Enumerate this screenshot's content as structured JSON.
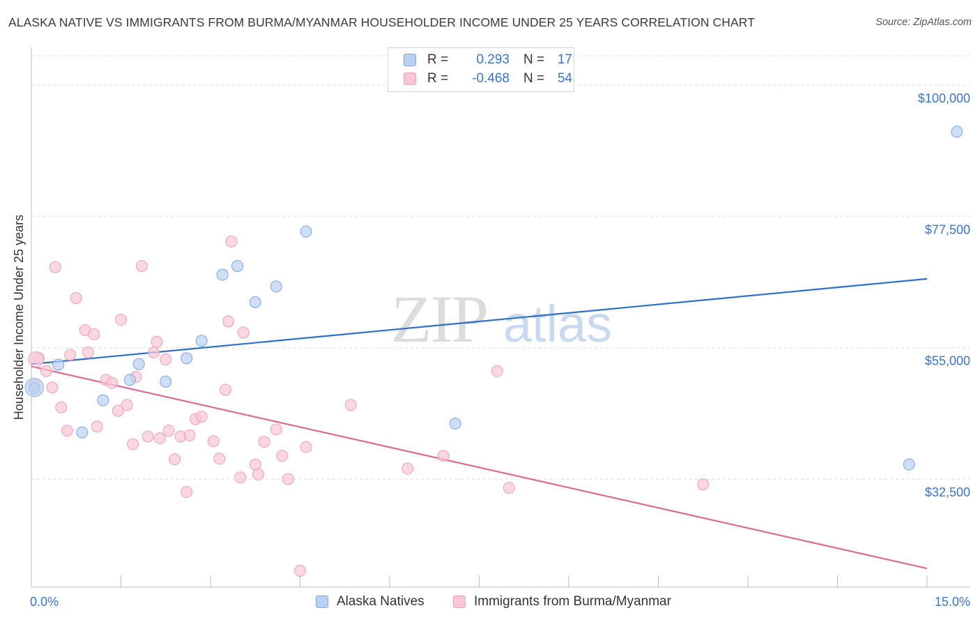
{
  "title": "ALASKA NATIVE VS IMMIGRANTS FROM BURMA/MYANMAR HOUSEHOLDER INCOME UNDER 25 YEARS CORRELATION CHART",
  "source": "Source: ZipAtlas.com",
  "watermark": {
    "zip": "ZIP",
    "atlas": "atlas"
  },
  "colors": {
    "blue_fill": "#b8d0f2",
    "blue_stroke": "#7fa6de",
    "blue_line": "#2f6fcc",
    "pink_fill": "#f8c6d4",
    "pink_stroke": "#eea0b6",
    "pink_line": "#e06891",
    "tick_label": "#3b74cc",
    "grid": "#dddddd"
  },
  "legend": {
    "r_label": "R =",
    "n_label": "N =",
    "rows": [
      {
        "r": "0.293",
        "n": "17",
        "color": "#b8d0f2",
        "stroke": "#7fa6de"
      },
      {
        "r": "-0.468",
        "n": "54",
        "color": "#f8c6d4",
        "stroke": "#eea0b6"
      }
    ]
  },
  "bottom_legend": {
    "series1": "Alaska Natives",
    "series2": "Immigrants from Burma/Myanmar"
  },
  "chart_data": {
    "type": "scatter",
    "ylabel": "Householder Income Under 25 years",
    "xlim": [
      0,
      15
    ],
    "ylim": [
      14000,
      105000
    ],
    "x_tick_labels": [
      {
        "value": 0,
        "label": "0.0%"
      },
      {
        "value": 15,
        "label": "15.0%"
      }
    ],
    "y_ticks": [
      {
        "value": 100000,
        "label": "$100,000"
      },
      {
        "value": 77500,
        "label": "$77,500"
      },
      {
        "value": 55000,
        "label": "$55,000"
      },
      {
        "value": 32500,
        "label": "$32,500"
      }
    ],
    "grid": true,
    "series": [
      {
        "name": "Alaska Natives",
        "color": "#b8d0f2",
        "trend": {
          "x": [
            0,
            15
          ],
          "y": [
            52200,
            66800
          ]
        },
        "points": [
          [
            0.05,
            48000
          ],
          [
            0.45,
            52100
          ],
          [
            0.85,
            40500
          ],
          [
            1.2,
            46000
          ],
          [
            1.65,
            49500
          ],
          [
            1.8,
            52200
          ],
          [
            2.25,
            49200
          ],
          [
            2.6,
            53200
          ],
          [
            2.85,
            56200
          ],
          [
            3.2,
            67500
          ],
          [
            3.45,
            69000
          ],
          [
            3.75,
            62800
          ],
          [
            4.1,
            65500
          ],
          [
            4.6,
            74900
          ],
          [
            7.1,
            42000
          ],
          [
            14.7,
            35000
          ],
          [
            15.5,
            92000
          ]
        ]
      },
      {
        "name": "Immigrants from Burma/Myanmar",
        "color": "#f8c6d4",
        "trend": {
          "x": [
            0,
            15
          ],
          "y": [
            51800,
            17200
          ]
        },
        "points": [
          [
            0.05,
            48500
          ],
          [
            0.12,
            53200
          ],
          [
            0.25,
            51000
          ],
          [
            0.35,
            48200
          ],
          [
            0.5,
            44800
          ],
          [
            0.6,
            40800
          ],
          [
            0.65,
            53800
          ],
          [
            0.4,
            68800
          ],
          [
            0.75,
            63500
          ],
          [
            0.9,
            58000
          ],
          [
            0.95,
            54200
          ],
          [
            1.05,
            57300
          ],
          [
            1.1,
            41500
          ],
          [
            1.25,
            49500
          ],
          [
            1.35,
            49000
          ],
          [
            1.45,
            44200
          ],
          [
            1.5,
            59800
          ],
          [
            1.6,
            45200
          ],
          [
            1.7,
            38500
          ],
          [
            1.75,
            50000
          ],
          [
            1.85,
            69000
          ],
          [
            1.95,
            39800
          ],
          [
            2.05,
            54200
          ],
          [
            2.1,
            56000
          ],
          [
            2.15,
            39500
          ],
          [
            2.25,
            53000
          ],
          [
            2.3,
            40800
          ],
          [
            2.4,
            35900
          ],
          [
            2.5,
            39800
          ],
          [
            2.6,
            30300
          ],
          [
            2.65,
            40000
          ],
          [
            2.75,
            42800
          ],
          [
            2.85,
            43200
          ],
          [
            3.05,
            39000
          ],
          [
            3.15,
            36000
          ],
          [
            3.25,
            47800
          ],
          [
            3.3,
            59500
          ],
          [
            3.35,
            73200
          ],
          [
            3.5,
            32800
          ],
          [
            3.55,
            57600
          ],
          [
            3.75,
            35000
          ],
          [
            3.8,
            33300
          ],
          [
            3.9,
            38900
          ],
          [
            4.1,
            41000
          ],
          [
            4.2,
            36500
          ],
          [
            4.3,
            32500
          ],
          [
            4.6,
            38000
          ],
          [
            4.5,
            16800
          ],
          [
            5.35,
            45200
          ],
          [
            6.3,
            34300
          ],
          [
            6.9,
            36500
          ],
          [
            7.8,
            51000
          ],
          [
            8.0,
            31000
          ],
          [
            11.25,
            31600
          ]
        ]
      }
    ]
  }
}
